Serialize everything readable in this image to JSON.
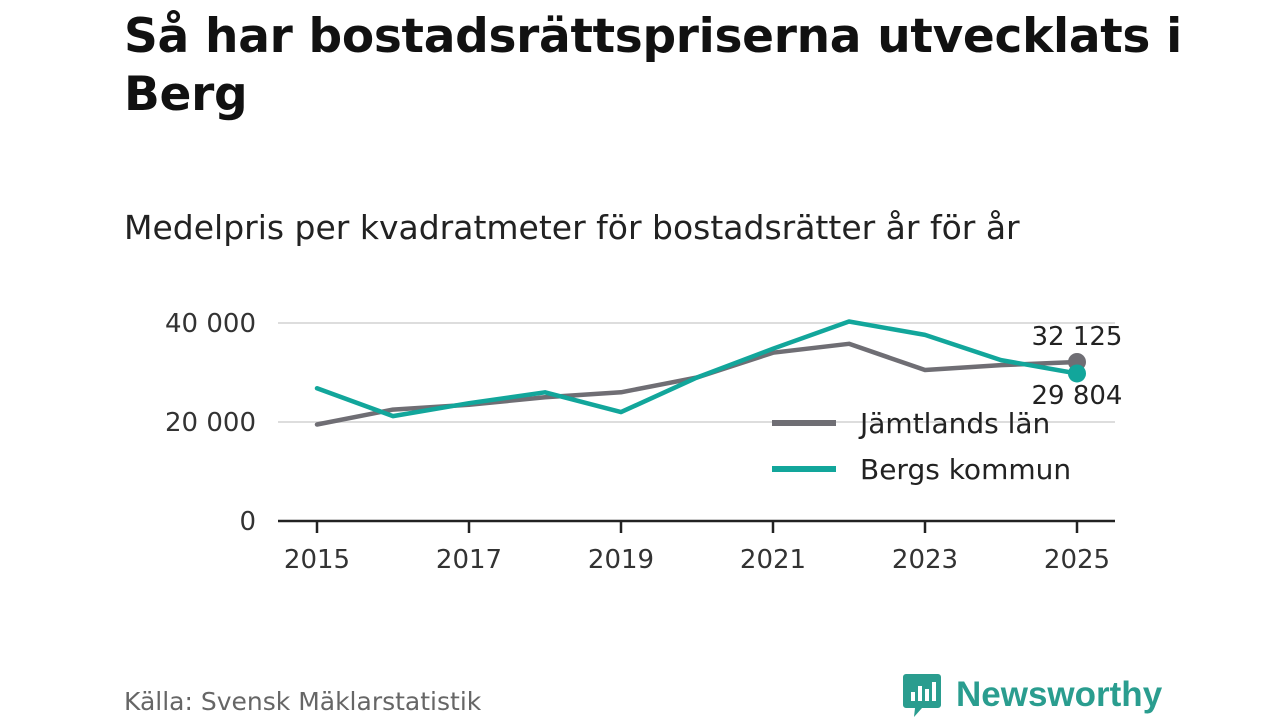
{
  "header": {
    "title": "Så har bostadsrättspriserna utvecklats i Berg",
    "subtitle": "Medelpris per kvadratmeter för bostadsrätter år för år"
  },
  "footer": {
    "source": "Källa: Svensk Mäklarstatistik",
    "brand": "Newsworthy"
  },
  "colors": {
    "jamtland": "#6f6e74",
    "berg": "#12a69b",
    "grid": "#dddddd",
    "axis": "#222222",
    "brand": "#2a9d8f"
  },
  "chart_data": {
    "type": "line",
    "title": "Medelpris per kvadratmeter för bostadsrätter år för år",
    "x": [
      2015,
      2016,
      2017,
      2018,
      2019,
      2020,
      2021,
      2022,
      2023,
      2024,
      2025
    ],
    "x_ticks": [
      "2015",
      "2017",
      "2019",
      "2021",
      "2023",
      "2025"
    ],
    "y_ticks": [
      0,
      20000,
      40000
    ],
    "y_tick_labels": [
      "0",
      "20 000",
      "40 000"
    ],
    "ylim": [
      0,
      40000
    ],
    "grid": true,
    "legend_position": "bottom-right",
    "series": [
      {
        "name": "Jämtlands län",
        "color_key": "jamtland",
        "values": [
          19500,
          22500,
          23500,
          25000,
          26000,
          29000,
          34000,
          35800,
          30500,
          31500,
          32125
        ],
        "end_label": "32 125"
      },
      {
        "name": "Bergs kommun",
        "color_key": "berg",
        "values": [
          26800,
          21200,
          23800,
          26000,
          22000,
          29000,
          34800,
          40300,
          37600,
          32500,
          29804
        ],
        "end_label": "29 804"
      }
    ]
  }
}
